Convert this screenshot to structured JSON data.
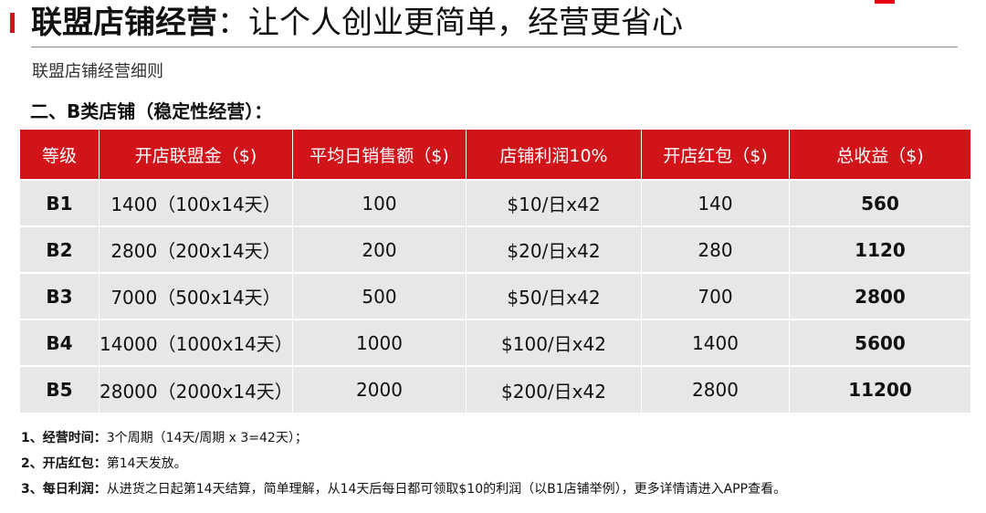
{
  "header": {
    "title_bold": "联盟店铺经营",
    "title_rest": "：让个人创业更简单，经营更省心"
  },
  "subtitle": "联盟店铺经营细则",
  "section_title": "二、B类店铺（稳定性经营）：",
  "table": {
    "headers": [
      "等级",
      "开店联盟金（$)",
      "平均日销售额（$)",
      "店铺利润10%",
      "开店红包（$)",
      "总收益（$)"
    ],
    "rows": [
      [
        "B1",
        "1400（100x14天）",
        "100",
        "$10/日x42",
        "140",
        "560"
      ],
      [
        "B2",
        "2800（200x14天）",
        "200",
        "$20/日x42",
        "280",
        "1120"
      ],
      [
        "B3",
        "7000（500x14天）",
        "500",
        "$50/日x42",
        "700",
        "2800"
      ],
      [
        "B4",
        "14000（1000x14天）",
        "1000",
        "$100/日x42",
        "1400",
        "5600"
      ],
      [
        "B5",
        "28000（2000x14天）",
        "2000",
        "$200/日x42",
        "2800",
        "11200"
      ]
    ]
  },
  "notes": [
    {
      "label": "1、经营时间：",
      "text": "3个周期（14天/周期 x 3=42天）；"
    },
    {
      "label": "2、开店红包：",
      "text": "第14天发放。"
    },
    {
      "label": "3、每日利润：",
      "text": "从进货之日起第14天结算，简单理解，从14天后每日都可领取$10的利润（以B1店铺举例），更多详情请进入APP查看。"
    }
  ],
  "colors": {
    "accent": "#d0141a",
    "row_bg": "#e7e7e7"
  }
}
